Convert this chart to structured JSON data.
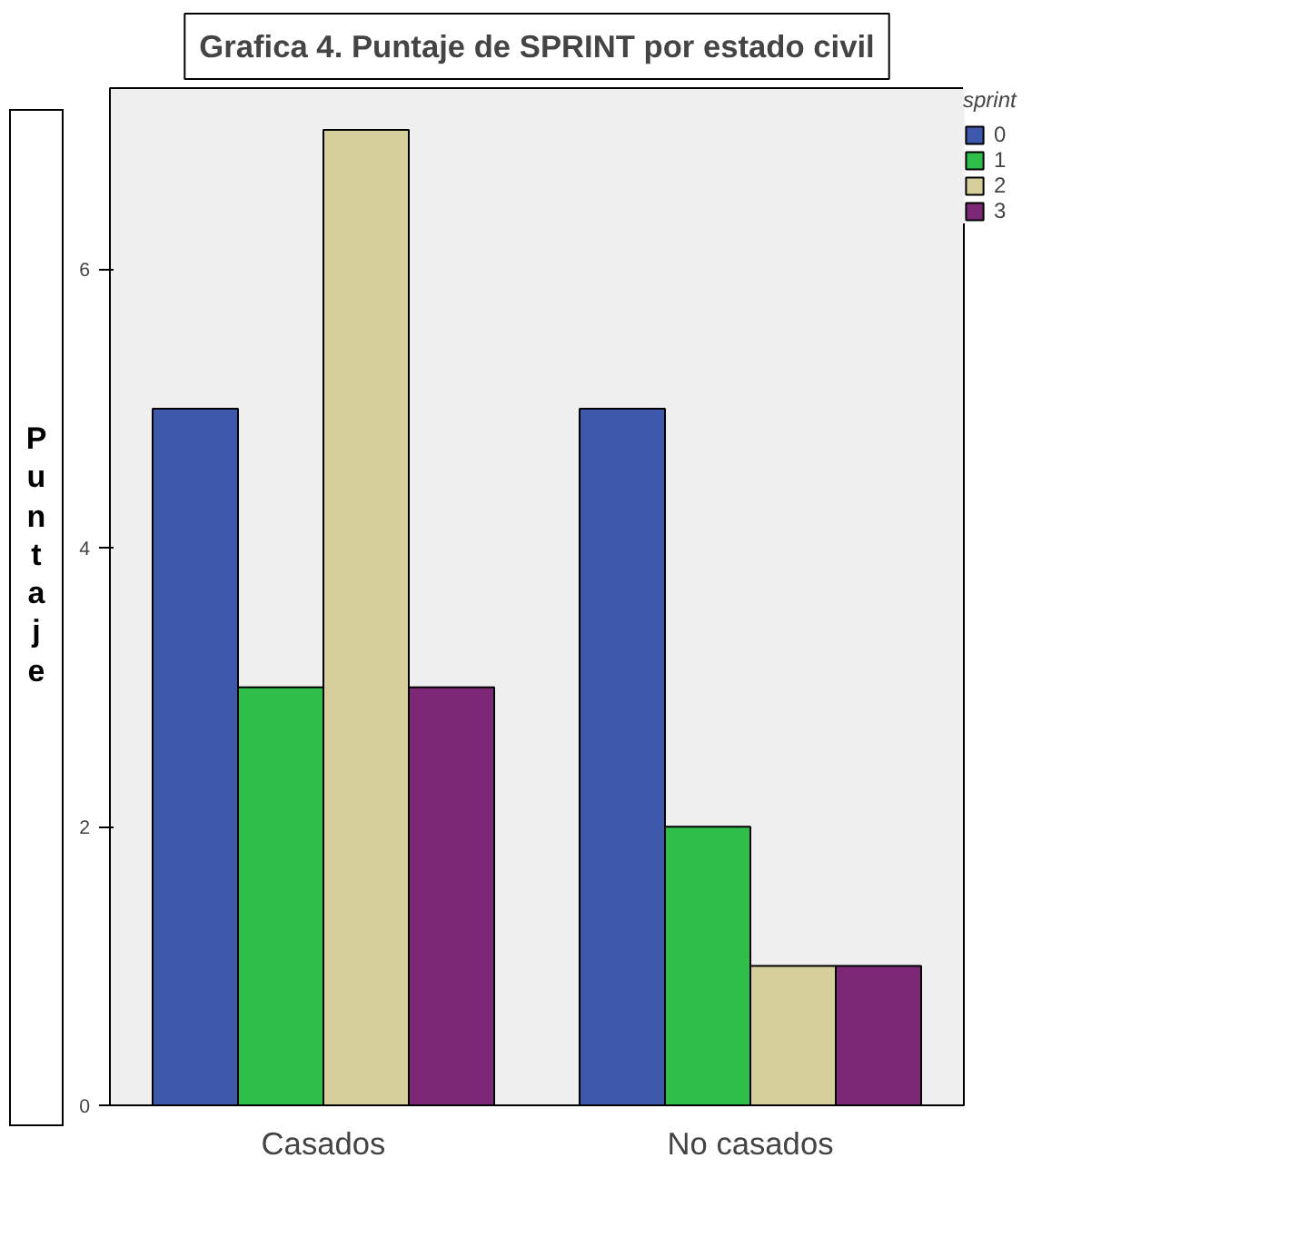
{
  "chart_data": {
    "type": "bar",
    "title": "Grafica 4. Puntaje de SPRINT por estado civil",
    "ylabel": "Puntaje",
    "legend_title": "sprint",
    "categories": [
      "Casados",
      "No casados"
    ],
    "series": [
      {
        "name": "0",
        "color": "#3e58ac",
        "values": [
          5,
          5
        ]
      },
      {
        "name": "1",
        "color": "#2fbe4a",
        "values": [
          3,
          2
        ]
      },
      {
        "name": "2",
        "color": "#d6cf9c",
        "values": [
          7,
          1
        ]
      },
      {
        "name": "3",
        "color": "#7c2877",
        "values": [
          3,
          1
        ]
      }
    ],
    "ylim": [
      0,
      7.3
    ],
    "yticks": [
      0,
      2,
      4,
      6
    ],
    "grid": false,
    "legend": "top right"
  }
}
